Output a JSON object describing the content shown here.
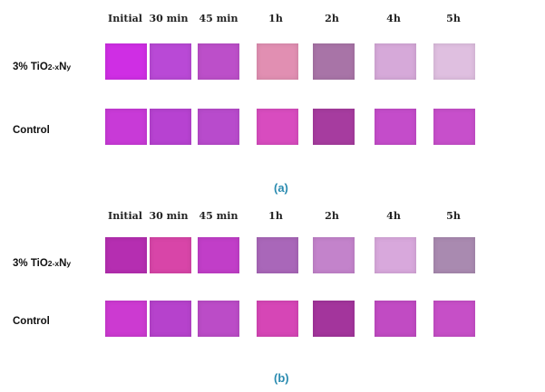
{
  "panels": [
    {
      "caption": "(a)",
      "time_labels": [
        "Initial",
        "30 min",
        "45 min",
        "1h",
        "2h",
        "4h",
        "5h"
      ],
      "rows": [
        {
          "label_prefix": "3% TiO",
          "label_sub": "2-x",
          "label_n": "N",
          "label_sub2": "y",
          "colors": [
            "#cf2ee4",
            "#b949d6",
            "#bc4fc9",
            "#e18fb2",
            "#a874a7",
            "#d6a9d9",
            "#dfbfe0"
          ]
        },
        {
          "label": "Control",
          "colors": [
            "#c83ad7",
            "#b742d1",
            "#b84bcc",
            "#d84cbf",
            "#a63c9f",
            "#c44cca",
            "#c74fcb"
          ]
        }
      ]
    },
    {
      "caption": "(b)",
      "time_labels": [
        "Initial",
        "30 min",
        "45 min",
        "1h",
        "2h",
        "4h",
        "5h"
      ],
      "rows": [
        {
          "label_prefix": "3% TiO",
          "label_sub": "2-x",
          "label_n": "N",
          "label_sub2": "y",
          "colors": [
            "#b52eb1",
            "#d845a8",
            "#c13ec8",
            "#a967b9",
            "#c383cb",
            "#d8a8dc",
            "#a98ab0"
          ]
        },
        {
          "label": "Control",
          "colors": [
            "#cc3ad1",
            "#b642cc",
            "#bb4cc7",
            "#d646b6",
            "#a3359c",
            "#c14bc3",
            "#c64fc7"
          ]
        }
      ]
    }
  ]
}
